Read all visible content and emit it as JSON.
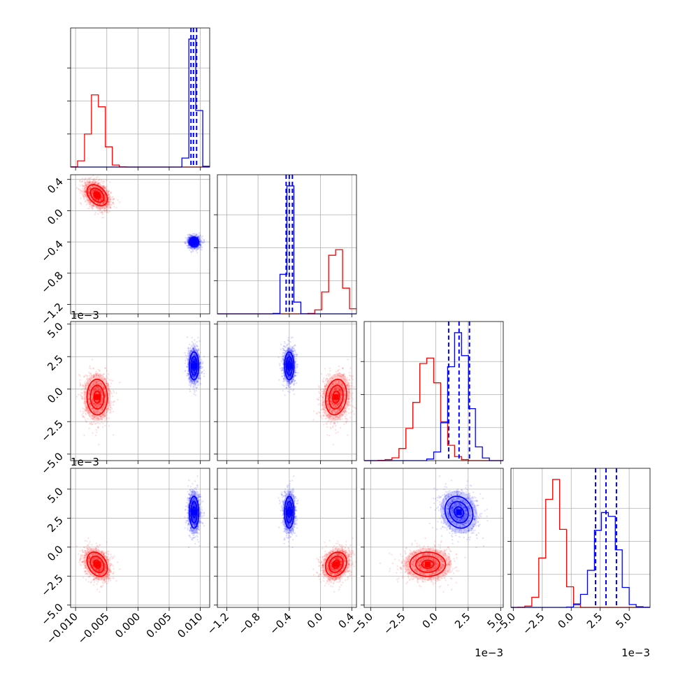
{
  "chart_data": {
    "type": "corner",
    "description_grid": "4x4 lower-triangular corner plot of posterior samples for two populations",
    "grid": true,
    "series": [
      {
        "color": "#ff0000",
        "params": [
          {
            "mean": -0.0065,
            "sd": 0.0011
          },
          {
            "mean": 0.2,
            "sd": 0.09
          },
          {
            "mean": -0.0006,
            "sd": 0.0009
          },
          {
            "mean": -0.0015,
            "sd": 0.0007
          }
        ],
        "pairs": [
          {
            "i": 2,
            "j": 1,
            "corr": 0.15
          },
          {
            "i": 3,
            "j": 1,
            "corr": 0.1
          },
          {
            "i": 2,
            "j": 3,
            "corr": -0.1
          },
          {
            "i": 1,
            "j": 0,
            "corr": -0.45
          },
          {
            "i": 3,
            "j": 0,
            "corr": -0.35
          },
          {
            "i": 3,
            "j": 2,
            "corr": 0.05
          }
        ]
      },
      {
        "color": "#0000ff",
        "params": [
          {
            "mean": 0.009,
            "sd": 0.0005
          },
          {
            "mean": -0.4,
            "sd": 0.04
          },
          {
            "mean": 0.0018,
            "sd": 0.0007
          },
          {
            "mean": 0.003,
            "sd": 0.0009
          }
        ],
        "pairs": [
          {
            "i": 1,
            "j": 0,
            "corr": 0.0
          },
          {
            "i": 2,
            "j": 0,
            "corr": 0.0
          },
          {
            "i": 3,
            "j": 0,
            "corr": 0.0
          },
          {
            "i": 2,
            "j": 1,
            "corr": 0.0
          },
          {
            "i": 3,
            "j": 1,
            "corr": 0.0
          },
          {
            "i": 3,
            "j": 2,
            "corr": -0.15
          }
        ],
        "quantiles": [
          [
            0.0085,
            0.0089,
            0.0094
          ],
          [
            -0.44,
            -0.4,
            -0.36
          ],
          [
            0.001,
            0.0018,
            0.0026
          ],
          [
            0.0021,
            0.003,
            0.0039
          ]
        ]
      }
    ],
    "axes": [
      {
        "range": [
          -0.0108,
          0.0115
        ],
        "ticks": [
          -0.01,
          -0.005,
          0.0,
          0.005,
          0.01
        ],
        "tick_labels": [
          "−0.010",
          "−0.005",
          "0.000",
          "0.005",
          "0.010"
        ],
        "offset_label": ""
      },
      {
        "range": [
          -1.32,
          0.46
        ],
        "ticks": [
          -1.2,
          -0.8,
          -0.4,
          0.0,
          0.4
        ],
        "tick_labels": [
          "−1.2",
          "−0.8",
          "−0.4",
          "0.0",
          "0.4"
        ],
        "offset_label": ""
      },
      {
        "range": [
          -0.0055,
          0.0052
        ],
        "ticks": [
          -0.005,
          -0.0025,
          0.0,
          0.0025,
          0.005
        ],
        "tick_labels": [
          "−5.0",
          "−2.5",
          "0.0",
          "2.5",
          "5.0"
        ],
        "offset_label": "1e−3"
      },
      {
        "range": [
          -0.0052,
          0.0068
        ],
        "ticks": [
          -0.005,
          -0.0025,
          0.0,
          0.0025,
          0.005
        ],
        "tick_labels": [
          "−5.0",
          "−2.5",
          "0.0",
          "2.5",
          "5.0"
        ],
        "offset_label": "1e−3"
      }
    ],
    "samples_per_population": 2200,
    "histogram_bins": 20
  }
}
